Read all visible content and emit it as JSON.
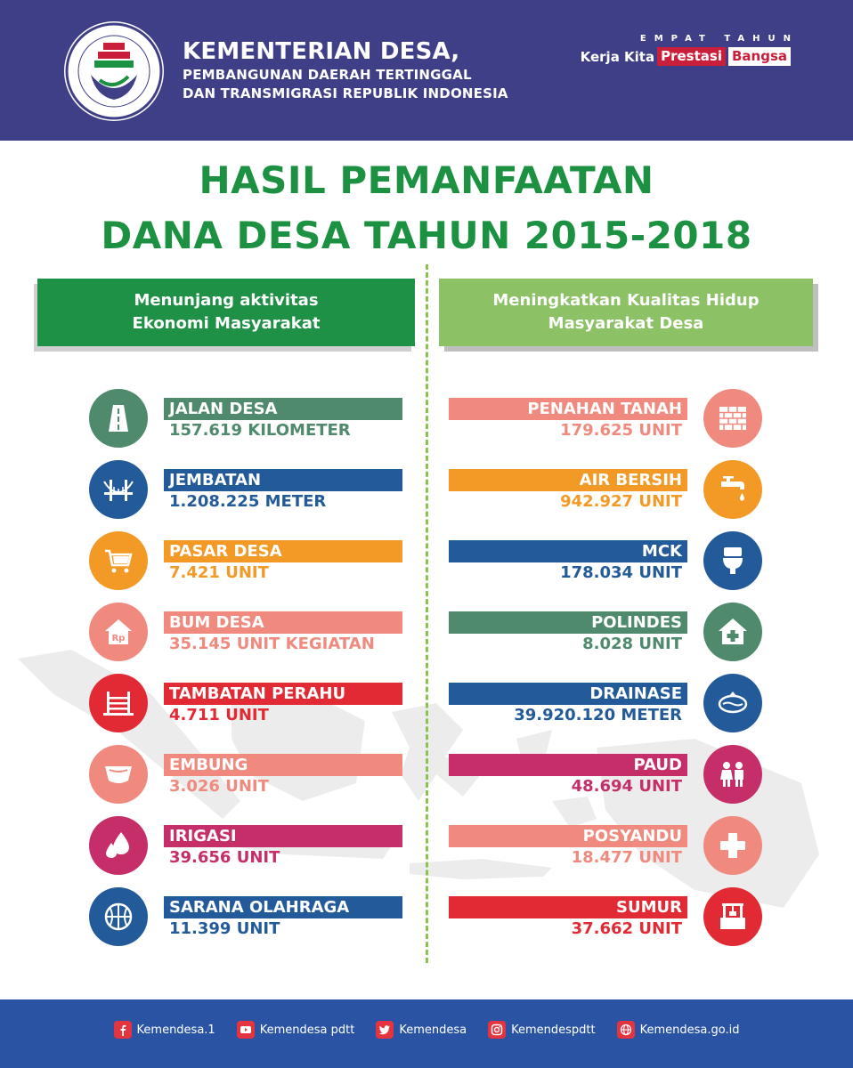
{
  "header": {
    "ministry_line1": "KEMENTERIAN DESA,",
    "ministry_line2": "PEMBANGUNAN DAERAH TERTINGGAL",
    "ministry_line3": "DAN TRANSMIGRASI REPUBLIK INDONESIA",
    "tagline_top": "EMPAT TAHUN",
    "tagline_a": "Kerja Kita",
    "tagline_b": "Prestasi",
    "tagline_c": "Bangsa"
  },
  "title": {
    "line1": "HASIL PEMANFAATAN",
    "line2": "DANA DESA TAHUN 2015-2018"
  },
  "sections": {
    "left_line1": "Menunjang aktivitas",
    "left_line2": "Ekonomi Masyarakat",
    "right_line1": "Meningkatkan Kualitas Hidup",
    "right_line2": "Masyarakat Desa"
  },
  "left_items": [
    {
      "label": "JALAN DESA",
      "value": "157.619 KILOMETER",
      "icon": "road-icon",
      "color": "#4f8a6c"
    },
    {
      "label": "JEMBATAN",
      "value": "1.208.225 METER",
      "icon": "bridge-icon",
      "color": "#235b9a"
    },
    {
      "label": "PASAR DESA",
      "value": "7.421 UNIT",
      "icon": "cart-icon",
      "color": "#f39a26"
    },
    {
      "label": "BUM DESA",
      "value": "35.145 UNIT KEGIATAN",
      "icon": "rp-house-icon",
      "color": "#f08a7e"
    },
    {
      "label": "TAMBATAN PERAHU",
      "value": "4.711 UNIT",
      "icon": "pier-icon",
      "color": "#e12a33"
    },
    {
      "label": "EMBUNG",
      "value": "3.026 UNIT",
      "icon": "reservoir-icon",
      "color": "#f08a7e"
    },
    {
      "label": "IRIGASI",
      "value": "39.656 UNIT",
      "icon": "water-drops-icon",
      "color": "#c62e6a"
    },
    {
      "label": "SARANA OLAHRAGA",
      "value": "11.399 UNIT",
      "icon": "ball-icon",
      "color": "#235b9a"
    }
  ],
  "right_items": [
    {
      "label": "PENAHAN TANAH",
      "value": "179.625 UNIT",
      "icon": "wall-icon",
      "color": "#f08a7e"
    },
    {
      "label": "AIR BERSIH",
      "value": "942.927 UNIT",
      "icon": "faucet-icon",
      "color": "#f39a26"
    },
    {
      "label": "MCK",
      "value": "178.034 UNIT",
      "icon": "toilet-icon",
      "color": "#235b9a"
    },
    {
      "label": "POLINDES",
      "value": "8.028 UNIT",
      "icon": "clinic-icon",
      "color": "#4f8a6c"
    },
    {
      "label": "DRAINASE",
      "value": "39.920.120 METER",
      "icon": "drainage-icon",
      "color": "#235b9a"
    },
    {
      "label": "PAUD",
      "value": "48.694 UNIT",
      "icon": "children-icon",
      "color": "#c62e6a"
    },
    {
      "label": "POSYANDU",
      "value": "18.477 UNIT",
      "icon": "health-cross-icon",
      "color": "#f08a7e"
    },
    {
      "label": "SUMUR",
      "value": "37.662 UNIT",
      "icon": "well-icon",
      "color": "#e12a33"
    }
  ],
  "footer": {
    "facebook": "Kemendesa.1",
    "youtube": "Kemendesa pdtt",
    "twitter": "Kemendesa",
    "instagram": "Kemendespdtt",
    "website": "Kemendesa.go.id"
  }
}
